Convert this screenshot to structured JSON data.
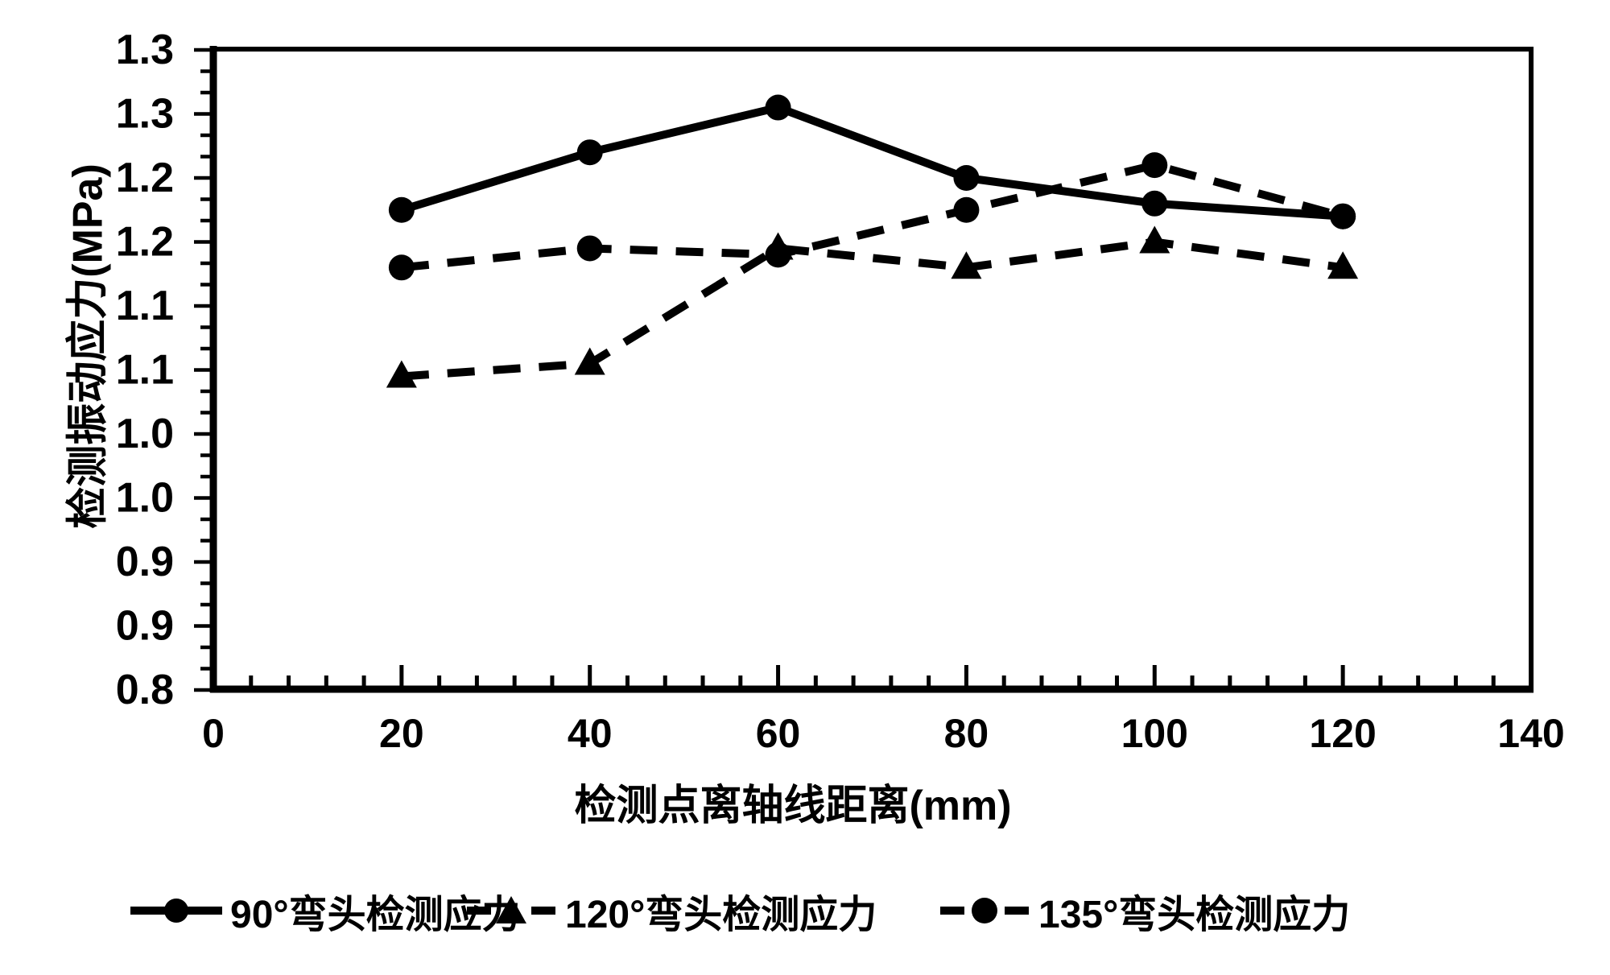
{
  "colors": {
    "ink": "#000000",
    "background": "#ffffff"
  },
  "chart_data": {
    "type": "line",
    "x": [
      20,
      40,
      60,
      80,
      100,
      120
    ],
    "series": [
      {
        "name": "90°弯头检测应力",
        "line": "solid",
        "marker": "circle",
        "values": [
          1.175,
          1.22,
          1.255,
          1.2,
          1.18,
          1.17
        ]
      },
      {
        "name": "120°弯头检测应力",
        "line": "dashed",
        "marker": "triangle",
        "values": [
          1.045,
          1.055,
          1.145,
          1.13,
          1.15,
          1.13
        ]
      },
      {
        "name": "135°弯头检测应力",
        "line": "dashed",
        "marker": "circle",
        "values": [
          1.13,
          1.145,
          1.14,
          1.175,
          1.21,
          1.17
        ]
      }
    ],
    "xlabel": "检测点离轴线距离(mm)",
    "ylabel": "检测振动应力(MPa)",
    "xlim": [
      0,
      140
    ],
    "ylim": [
      0.8,
      1.3
    ],
    "x_tick_labels": [
      "0",
      "20",
      "40",
      "60",
      "80",
      "100",
      "120",
      "140"
    ],
    "x_major_step": 20,
    "x_minor_step": 4,
    "y_tick_labels": [
      "1.3",
      "1.3",
      "1.2",
      "1.2",
      "1.1",
      "1.1",
      "1.0",
      "1.0",
      "0.9",
      "0.9",
      "0.8"
    ],
    "y_major_step": 0.05,
    "y_minor_per_major": 3,
    "grid": false,
    "legend_position": "bottom"
  }
}
